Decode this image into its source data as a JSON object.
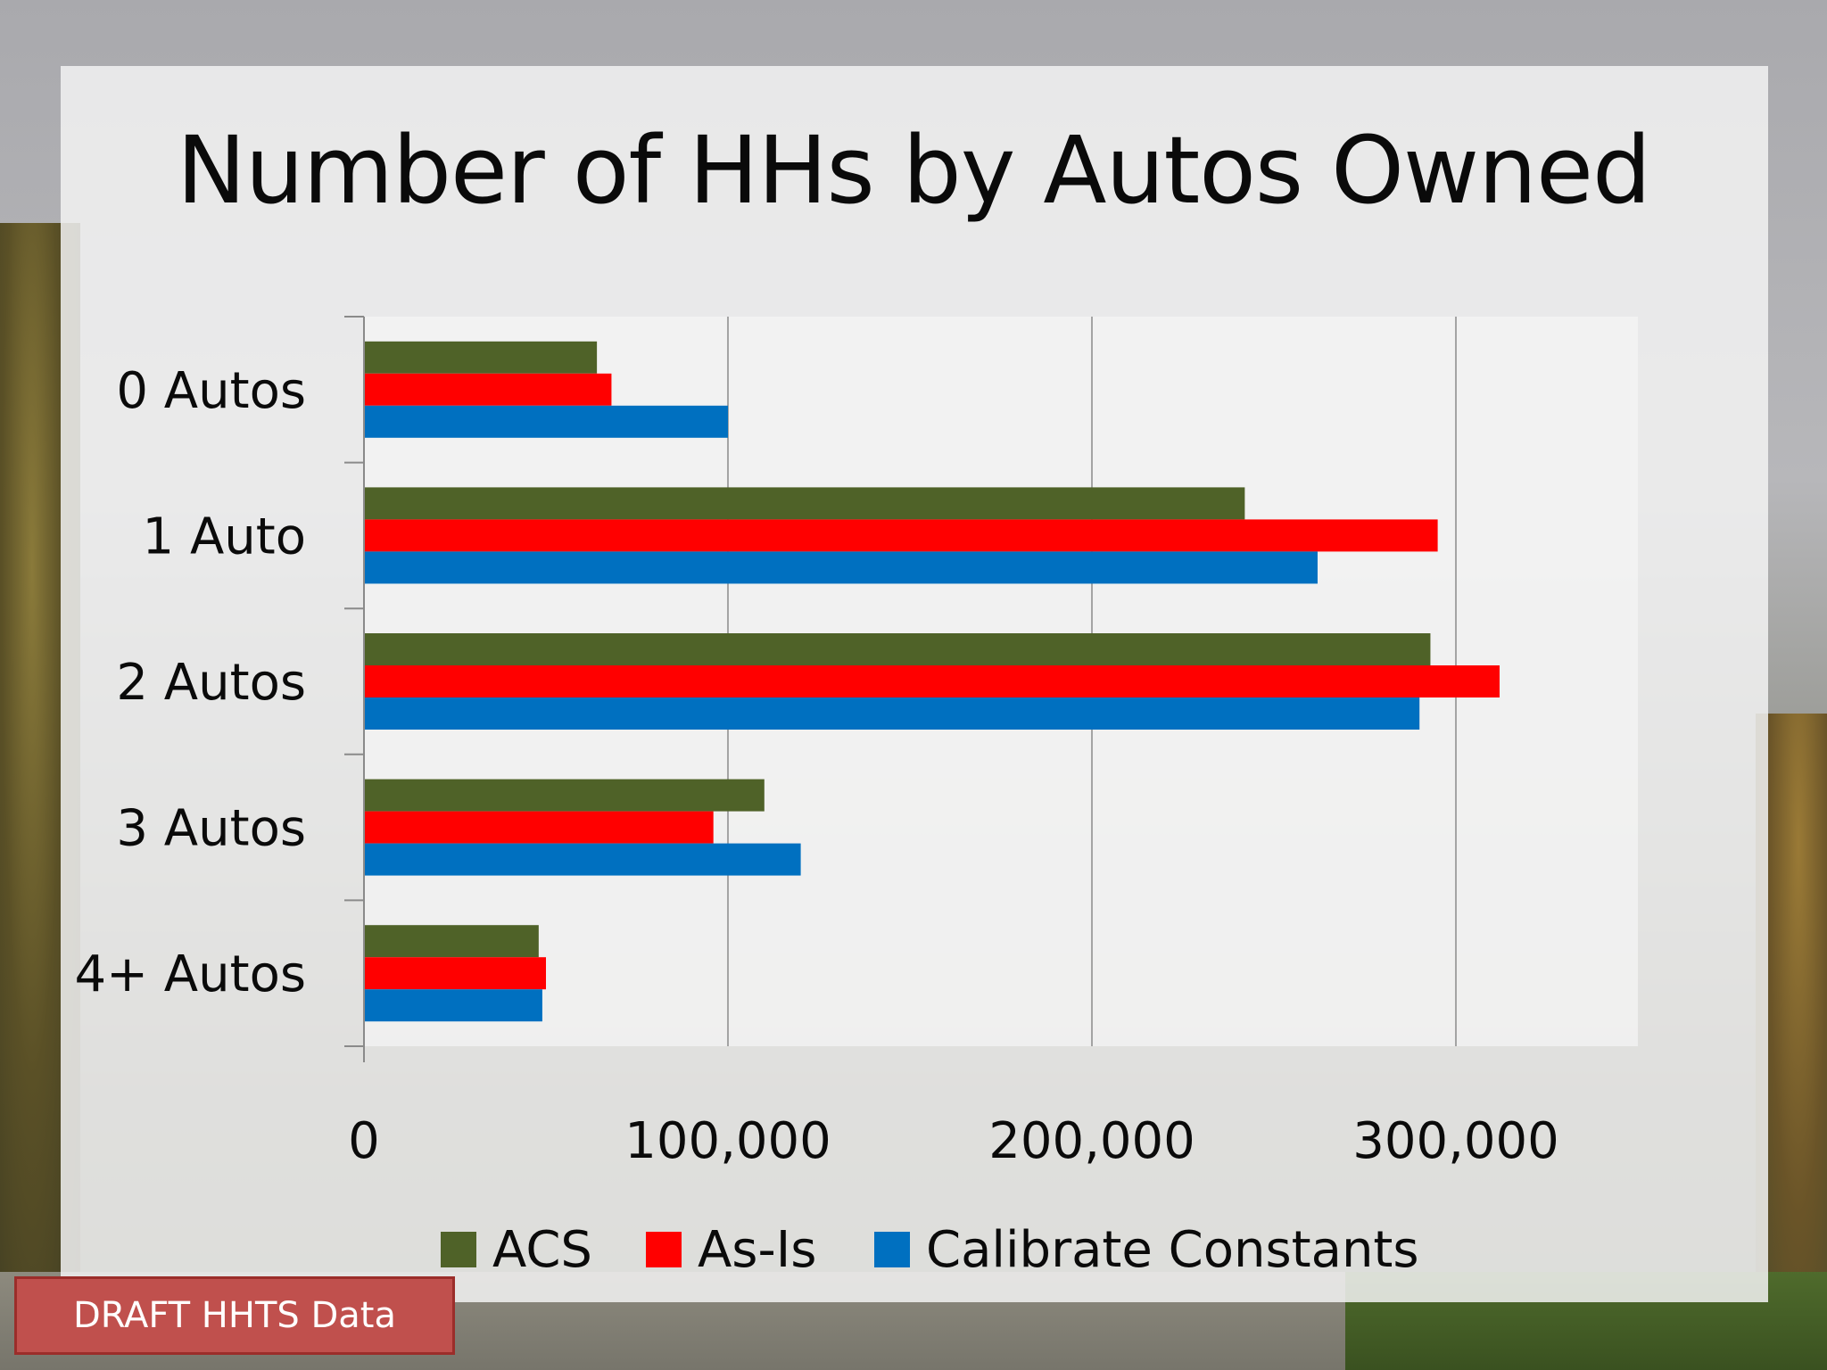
{
  "slide": {
    "title": "Number of HHs by Autos Owned",
    "badge": "DRAFT HHTS Data"
  },
  "chart_data": {
    "type": "bar",
    "orientation": "horizontal",
    "title": "Number of HHs by Autos Owned",
    "categories": [
      "0 Autos",
      "1 Auto",
      "2 Autos",
      "3 Autos",
      "4+ Autos"
    ],
    "series": [
      {
        "name": "ACS",
        "color": "#4f6228",
        "values": [
          64000,
          242000,
          293000,
          110000,
          48000
        ]
      },
      {
        "name": "As-Is",
        "color": "#ff0000",
        "values": [
          68000,
          295000,
          312000,
          96000,
          50000
        ]
      },
      {
        "name": "Calibrate Constants",
        "color": "#0070c0",
        "values": [
          100000,
          262000,
          290000,
          120000,
          49000
        ]
      }
    ],
    "xlim": [
      0,
      350000
    ],
    "xticks": [
      0,
      100000,
      200000,
      300000
    ],
    "xtick_labels": [
      "0",
      "100,000",
      "200,000",
      "300,000"
    ],
    "xlabel": "",
    "ylabel": "",
    "grid": "vertical major",
    "legend": "bottom"
  }
}
